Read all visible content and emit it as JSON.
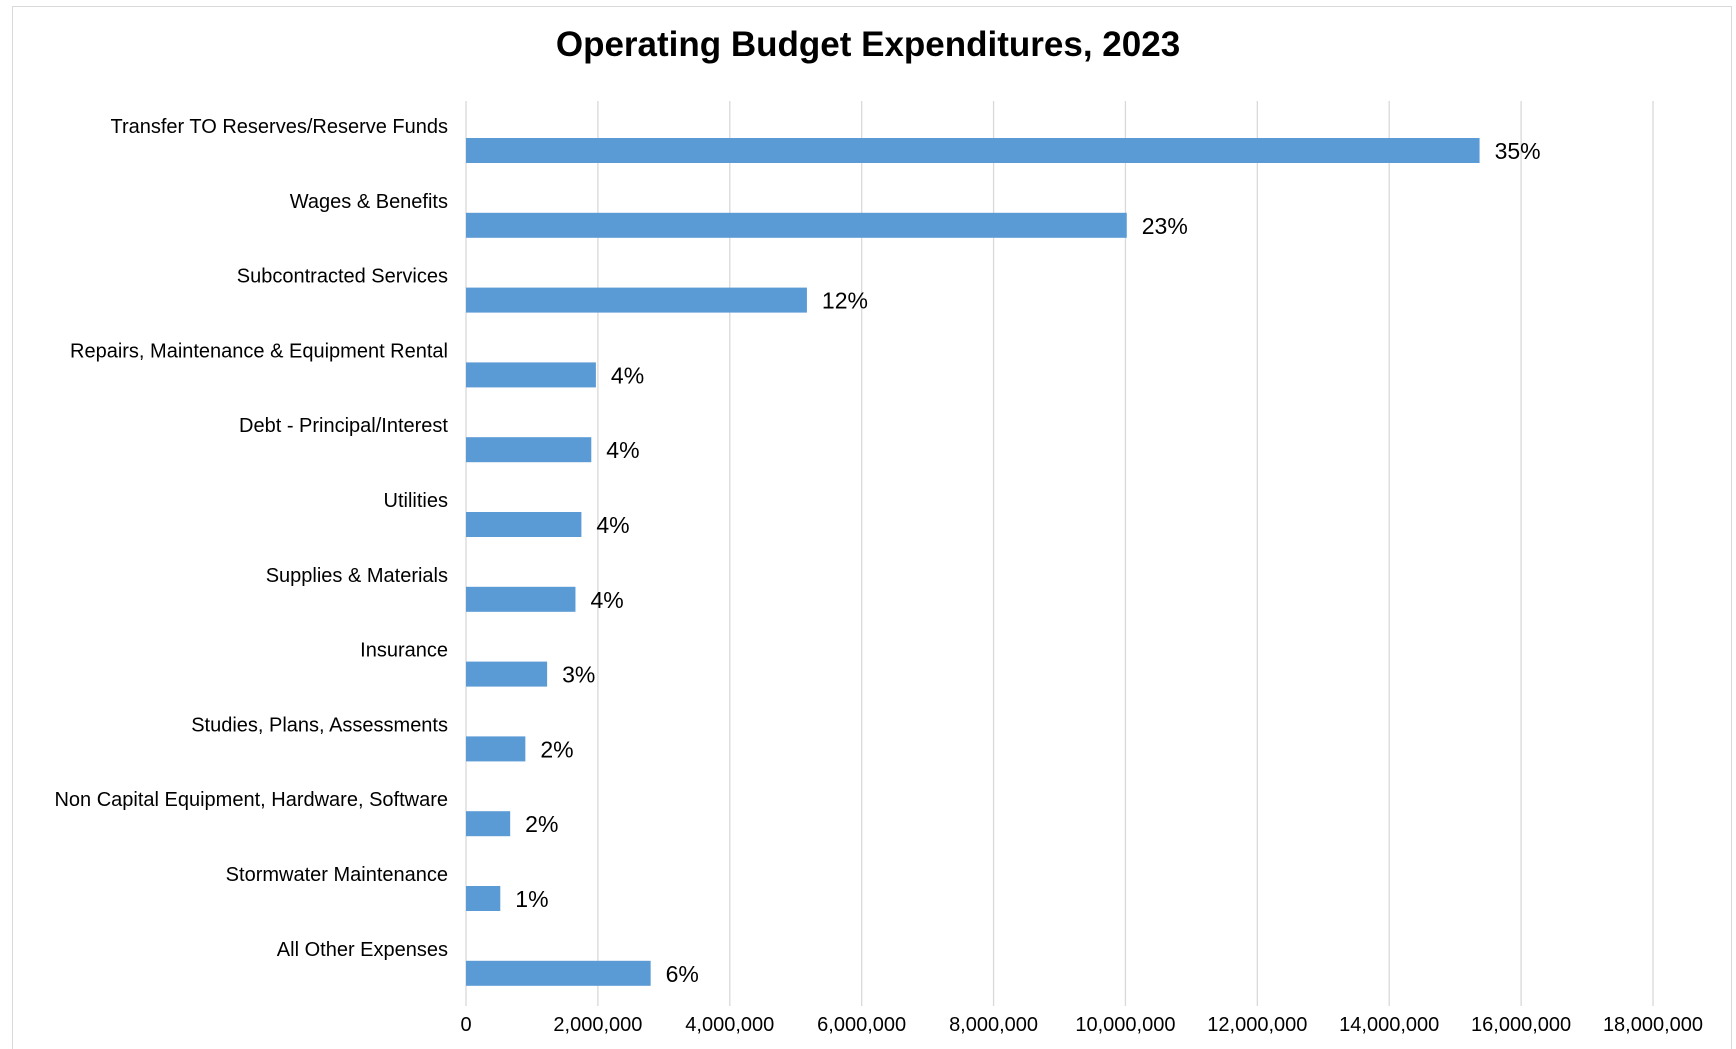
{
  "chart_data": {
    "type": "bar",
    "orientation": "horizontal",
    "title": "Operating Budget Expenditures, 2023",
    "xlabel": "",
    "ylabel": "",
    "categories": [
      "Transfer TO Reserves/Reserve Funds",
      "Wages & Benefits",
      "Subcontracted Services",
      "Repairs, Maintenance & Equipment Rental",
      "Debt - Principal/Interest",
      "Utilities",
      "Supplies & Materials",
      "Insurance",
      "Studies, Plans, Assessments",
      "Non Capital Equipment, Hardware, Software",
      "Stormwater Maintenance",
      "All Other Expenses"
    ],
    "values": [
      15370000,
      10020000,
      5170000,
      1970000,
      1900000,
      1750000,
      1660000,
      1230000,
      900000,
      670000,
      520000,
      2800000
    ],
    "data_labels": [
      "35%",
      "23%",
      "12%",
      "4%",
      "4%",
      "4%",
      "4%",
      "3%",
      "2%",
      "2%",
      "1%",
      "6%"
    ],
    "xlim": [
      0,
      18000000
    ],
    "xticks": [
      0,
      2000000,
      4000000,
      6000000,
      8000000,
      10000000,
      12000000,
      14000000,
      16000000,
      18000000
    ],
    "xtick_labels": [
      "0",
      "2,000,000",
      "4,000,000",
      "6,000,000",
      "8,000,000",
      "10,000,000",
      "12,000,000",
      "14,000,000",
      "16,000,000",
      "18,000,000"
    ],
    "grid": "vertical",
    "legend": "none",
    "colors": {
      "bar": "#5b9bd5",
      "grid": "#d9d9d9",
      "border": "#d9d9d9"
    }
  }
}
